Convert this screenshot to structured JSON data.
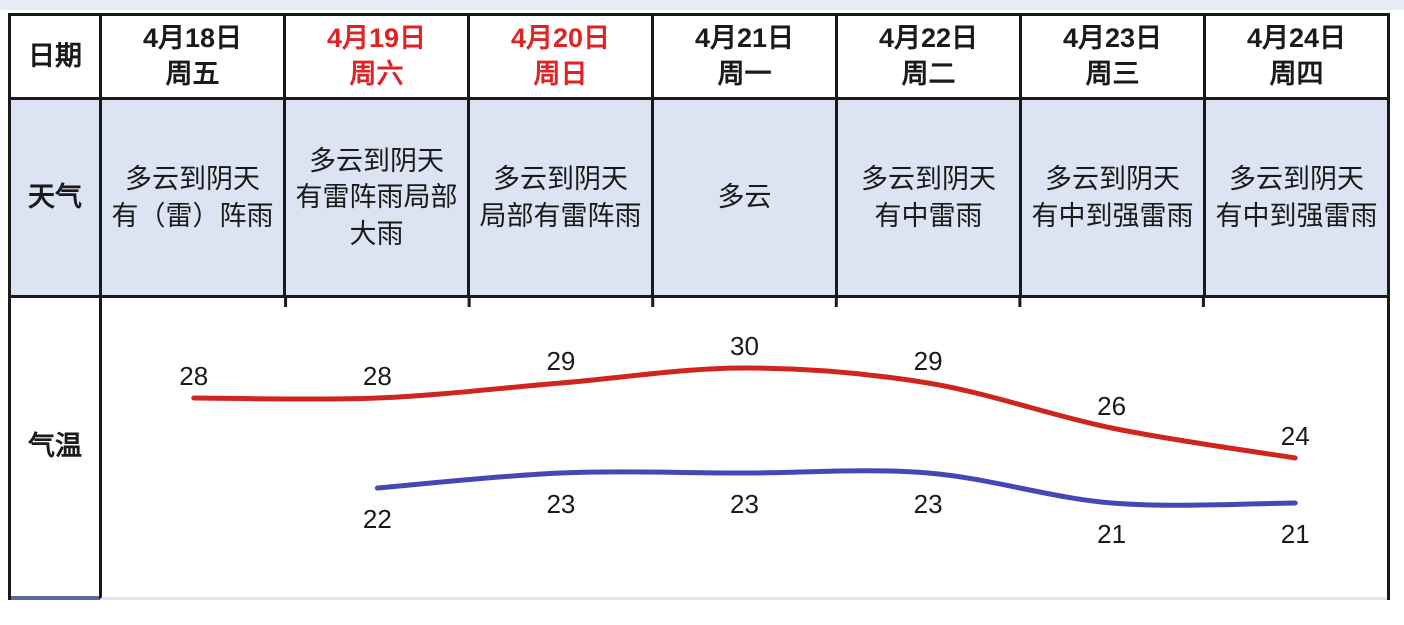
{
  "page": {
    "background": "#ffffff",
    "top_strip_color": "#e6ebf4"
  },
  "table": {
    "row_labels": {
      "date": "日期",
      "weather": "天气",
      "temperature": "气温"
    },
    "border_color": "#1a1a1a",
    "weather_row_bg": "#dce3f2",
    "temp_label_bottom_border": "#5a6b9e",
    "chart_bottom_border": "#e3e6ea",
    "columns": [
      {
        "date": "4月18日\n周五",
        "date_color": "#1a1a1a",
        "weather": "多云到阴天\n有（雷）阵雨"
      },
      {
        "date": "4月19日\n周六",
        "date_color": "#e02222",
        "weather": "多云到阴天\n有雷阵雨局部\n大雨"
      },
      {
        "date": "4月20日\n周日",
        "date_color": "#e02222",
        "weather": "多云到阴天\n局部有雷阵雨"
      },
      {
        "date": "4月21日\n周一",
        "date_color": "#1a1a1a",
        "weather": "多云"
      },
      {
        "date": "4月22日\n周二",
        "date_color": "#1a1a1a",
        "weather": "多云到阴天\n有中雷雨"
      },
      {
        "date": "4月23日\n周三",
        "date_color": "#1a1a1a",
        "weather": "多云到阴天\n有中到强雷雨"
      },
      {
        "date": "4月24日\n周四",
        "date_color": "#1a1a1a",
        "weather": "多云到阴天\n有中到强雷雨"
      }
    ]
  },
  "chart_data": {
    "type": "line",
    "categories": [
      "4月18日",
      "4月19日",
      "4月20日",
      "4月21日",
      "4月22日",
      "4月23日",
      "4月24日"
    ],
    "series": [
      {
        "name": "high",
        "color": "#cf2420",
        "values": [
          28,
          28,
          29,
          30,
          29,
          26,
          24
        ],
        "label_position": "above"
      },
      {
        "name": "low",
        "color": "#4547b5",
        "values": [
          null,
          22,
          23,
          23,
          23,
          21,
          21
        ],
        "label_position": "below"
      }
    ],
    "ylim": [
      19,
      33
    ],
    "grid": false,
    "legend": "none",
    "label_color": "#1a1a1a",
    "tick_color": "#1a1a1a"
  }
}
